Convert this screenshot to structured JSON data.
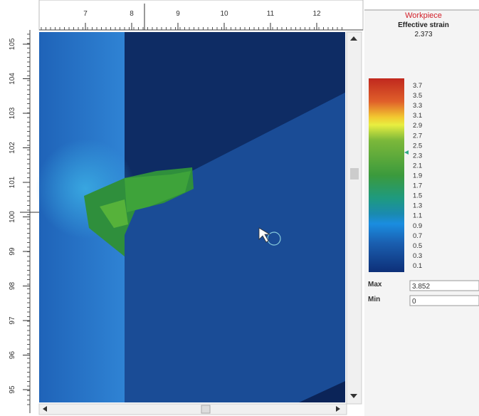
{
  "ruler_top": {
    "labels": [
      "7",
      "8",
      "9",
      "10",
      "11",
      "12"
    ]
  },
  "ruler_left": {
    "labels": [
      "105",
      "104",
      "103",
      "102",
      "101",
      "100",
      "99",
      "98",
      "97",
      "96",
      "95"
    ]
  },
  "panel": {
    "title": "Workpiece",
    "variable": "Effective strain",
    "value": "2.373",
    "legend": {
      "labels": [
        "3.7",
        "3.5",
        "3.3",
        "3.1",
        "2.9",
        "2.7",
        "2.5",
        "2.3",
        "2.1",
        "1.9",
        "1.7",
        "1.5",
        "1.3",
        "1.1",
        "0.9",
        "0.7",
        "0.5",
        "0.3",
        "0.1"
      ]
    },
    "max": {
      "label": "Max",
      "value": "3.852"
    },
    "min": {
      "label": "Min",
      "value": "0"
    }
  }
}
